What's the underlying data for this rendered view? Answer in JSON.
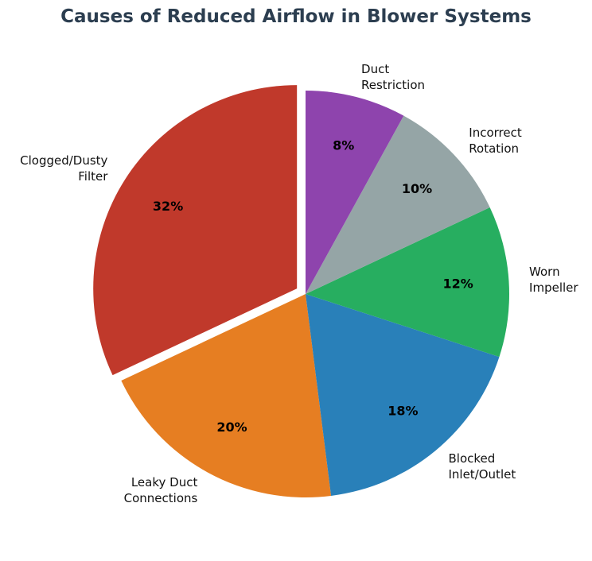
{
  "chart_data": {
    "type": "pie",
    "title": "Causes of Reduced Airflow in Blower Systems",
    "categories": [
      "Clogged/Dusty\nFilter",
      "Leaky Duct\nConnections",
      "Blocked\nInlet/Outlet",
      "Worn\nImpeller",
      "Incorrect\nRotation",
      "Duct\nRestriction"
    ],
    "values": [
      32,
      20,
      18,
      12,
      10,
      8
    ],
    "value_labels": [
      "32%",
      "20%",
      "18%",
      "12%",
      "10%",
      "8%"
    ],
    "colors": [
      "#c0392b",
      "#e67e22",
      "#2980b9",
      "#27ae60",
      "#95a5a6",
      "#8e44ad"
    ],
    "explode": [
      0.05,
      0,
      0,
      0,
      0,
      0
    ]
  }
}
